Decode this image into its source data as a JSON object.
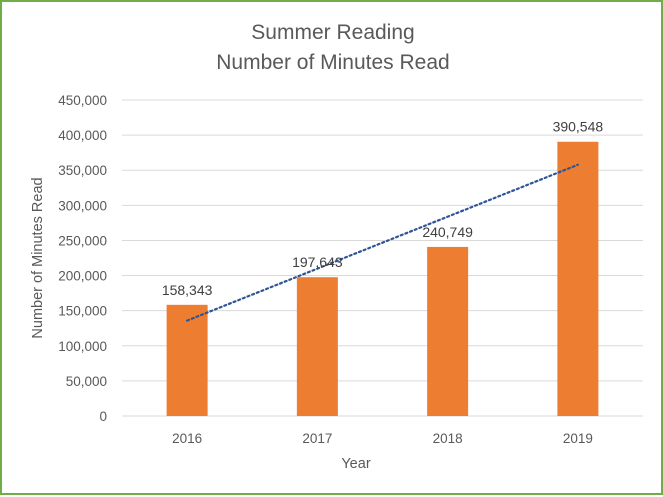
{
  "chart_data": {
    "type": "bar",
    "title": [
      "Summer Reading",
      "Number of Minutes Read"
    ],
    "xlabel": "Year",
    "ylabel": "Number of Minutes Read",
    "categories": [
      "2016",
      "2017",
      "2018",
      "2019"
    ],
    "values": [
      158343,
      197643,
      240749,
      390548
    ],
    "data_labels": [
      "158,343",
      "197,643",
      "240,749",
      "390,548"
    ],
    "ylim": [
      0,
      450000
    ],
    "yticks": [
      0,
      50000,
      100000,
      150000,
      200000,
      250000,
      300000,
      350000,
      400000,
      450000
    ],
    "ytick_labels": [
      "0",
      "50,000",
      "100,000",
      "150,000",
      "200,000",
      "250,000",
      "300,000",
      "350,000",
      "400,000",
      "450,000"
    ],
    "trendline": {
      "type": "linear",
      "style": "dotted",
      "color": "#2e5597"
    },
    "grid": true,
    "legend": "none",
    "colors": {
      "bar": "#ed7d31",
      "grid": "#d9d9d9",
      "text": "#595959",
      "border": "#70ad47"
    }
  }
}
